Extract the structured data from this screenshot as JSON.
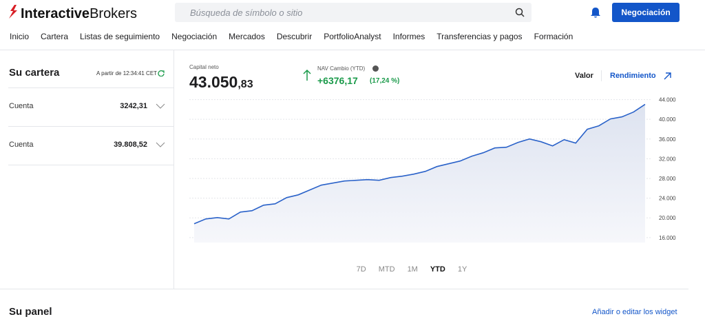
{
  "header": {
    "logo_bold": "Interactive",
    "logo_light": "Brokers",
    "search_placeholder": "Búsqueda de símbolo o sitio",
    "trade_button": "Negociación"
  },
  "nav": [
    "Inicio",
    "Cartera",
    "Listas de seguimiento",
    "Negociación",
    "Mercados",
    "Descubrir",
    "PortfolioAnalyst",
    "Informes",
    "Transferencias y pagos",
    "Formación"
  ],
  "portfolio": {
    "title": "Su cartera",
    "timestamp": "A partir de 12:34:41 CET",
    "accounts": [
      {
        "label": "Cuenta",
        "value": "3242,31"
      },
      {
        "label": "Cuenta",
        "value": "39.808,52"
      }
    ]
  },
  "summary": {
    "net_label": "Capital neto",
    "net_int": "43.050",
    "net_dec": ",83",
    "nav_label": "NAV Cambio (YTD)",
    "nav_change": "+6376,17",
    "nav_pct": "(17,24 %)"
  },
  "toggles": {
    "value": "Valor",
    "performance": "Rendimiento"
  },
  "ranges": [
    "7D",
    "MTD",
    "1M",
    "YTD",
    "1Y"
  ],
  "chart_data": {
    "type": "line",
    "categories": [
      null,
      null,
      null,
      null,
      null,
      null,
      null,
      null,
      null,
      null,
      null,
      null,
      null,
      null,
      null,
      null,
      null,
      null,
      null,
      null,
      null,
      null,
      null,
      null,
      null,
      null,
      null,
      null,
      null,
      null,
      null,
      null,
      null,
      null,
      null,
      null,
      null,
      null,
      null,
      null
    ],
    "series": [
      {
        "name": null,
        "color": "#2a62c9",
        "values": [
          18800,
          19780,
          20060,
          19780,
          21180,
          21460,
          22580,
          22860,
          24120,
          24680,
          25660,
          26640,
          27060,
          27480,
          27620,
          27760,
          27620,
          28180,
          28460,
          28880,
          29440,
          30420,
          30980,
          31540,
          32520,
          33220,
          34200,
          34340,
          35320,
          36020,
          35460,
          34620,
          35880,
          35180,
          37980,
          38680,
          40080,
          40500,
          41480,
          43050.83
        ]
      }
    ],
    "ylim": [
      15000,
      44500
    ],
    "yticks": [
      {
        "value": 16000,
        "label": "16.000"
      },
      {
        "value": 20000,
        "label": "20.000"
      },
      {
        "value": 24000,
        "label": "24.000"
      },
      {
        "value": 28000,
        "label": "28.000"
      },
      {
        "value": 32000,
        "label": "32.000"
      },
      {
        "value": 36000,
        "label": "36.000"
      },
      {
        "value": 40000,
        "label": "40.000"
      },
      {
        "value": 44000,
        "label": "44.000"
      }
    ],
    "grid": true
  },
  "panel": {
    "title": "Su panel",
    "edit_link": "Añadir o editar los widget"
  }
}
